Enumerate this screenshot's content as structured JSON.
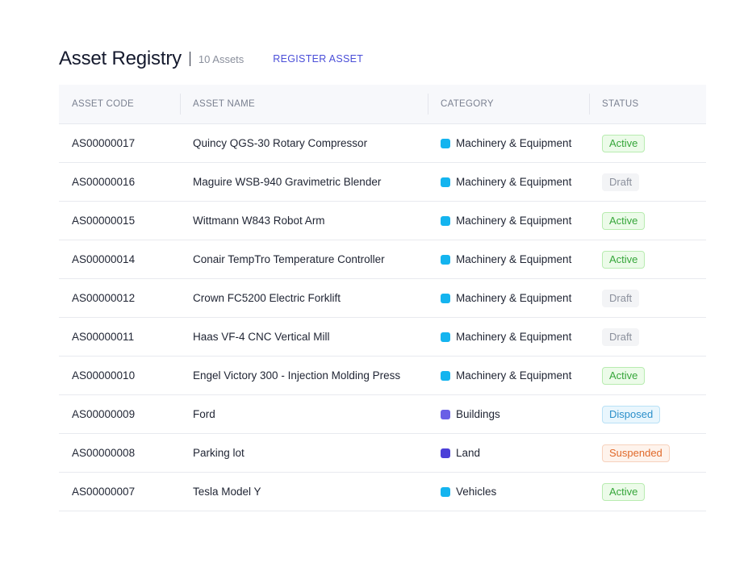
{
  "header": {
    "title": "Asset Registry",
    "count": "10 Assets",
    "register_label": "REGISTER ASSET"
  },
  "columns": [
    "ASSET CODE",
    "ASSET NAME",
    "CATEGORY",
    "STATUS"
  ],
  "category_colors": {
    "Machinery & Equipment": "#14b4ef",
    "Buildings": "#6a5fe6",
    "Land": "#4b3fd8",
    "Vehicles": "#14b4ef"
  },
  "rows": [
    {
      "code": "AS00000017",
      "name": "Quincy QGS-30 Rotary Compressor",
      "category": "Machinery & Equipment",
      "status": "Active"
    },
    {
      "code": "AS00000016",
      "name": "Maguire WSB-940 Gravimetric Blender",
      "category": "Machinery & Equipment",
      "status": "Draft"
    },
    {
      "code": "AS00000015",
      "name": "Wittmann W843 Robot Arm",
      "category": "Machinery & Equipment",
      "status": "Active"
    },
    {
      "code": "AS00000014",
      "name": "Conair TempTro Temperature Controller",
      "category": "Machinery & Equipment",
      "status": "Active"
    },
    {
      "code": "AS00000012",
      "name": "Crown FC5200 Electric Forklift",
      "category": "Machinery & Equipment",
      "status": "Draft"
    },
    {
      "code": "AS00000011",
      "name": "Haas VF-4 CNC Vertical Mill",
      "category": "Machinery & Equipment",
      "status": "Draft"
    },
    {
      "code": "AS00000010",
      "name": "Engel Victory 300 - Injection Molding Press",
      "category": "Machinery & Equipment",
      "status": "Active"
    },
    {
      "code": "AS00000009",
      "name": "Ford",
      "category": "Buildings",
      "status": "Disposed"
    },
    {
      "code": "AS00000008",
      "name": "Parking lot",
      "category": "Land",
      "status": "Suspended"
    },
    {
      "code": "AS00000007",
      "name": "Tesla Model Y",
      "category": "Vehicles",
      "status": "Active"
    }
  ]
}
